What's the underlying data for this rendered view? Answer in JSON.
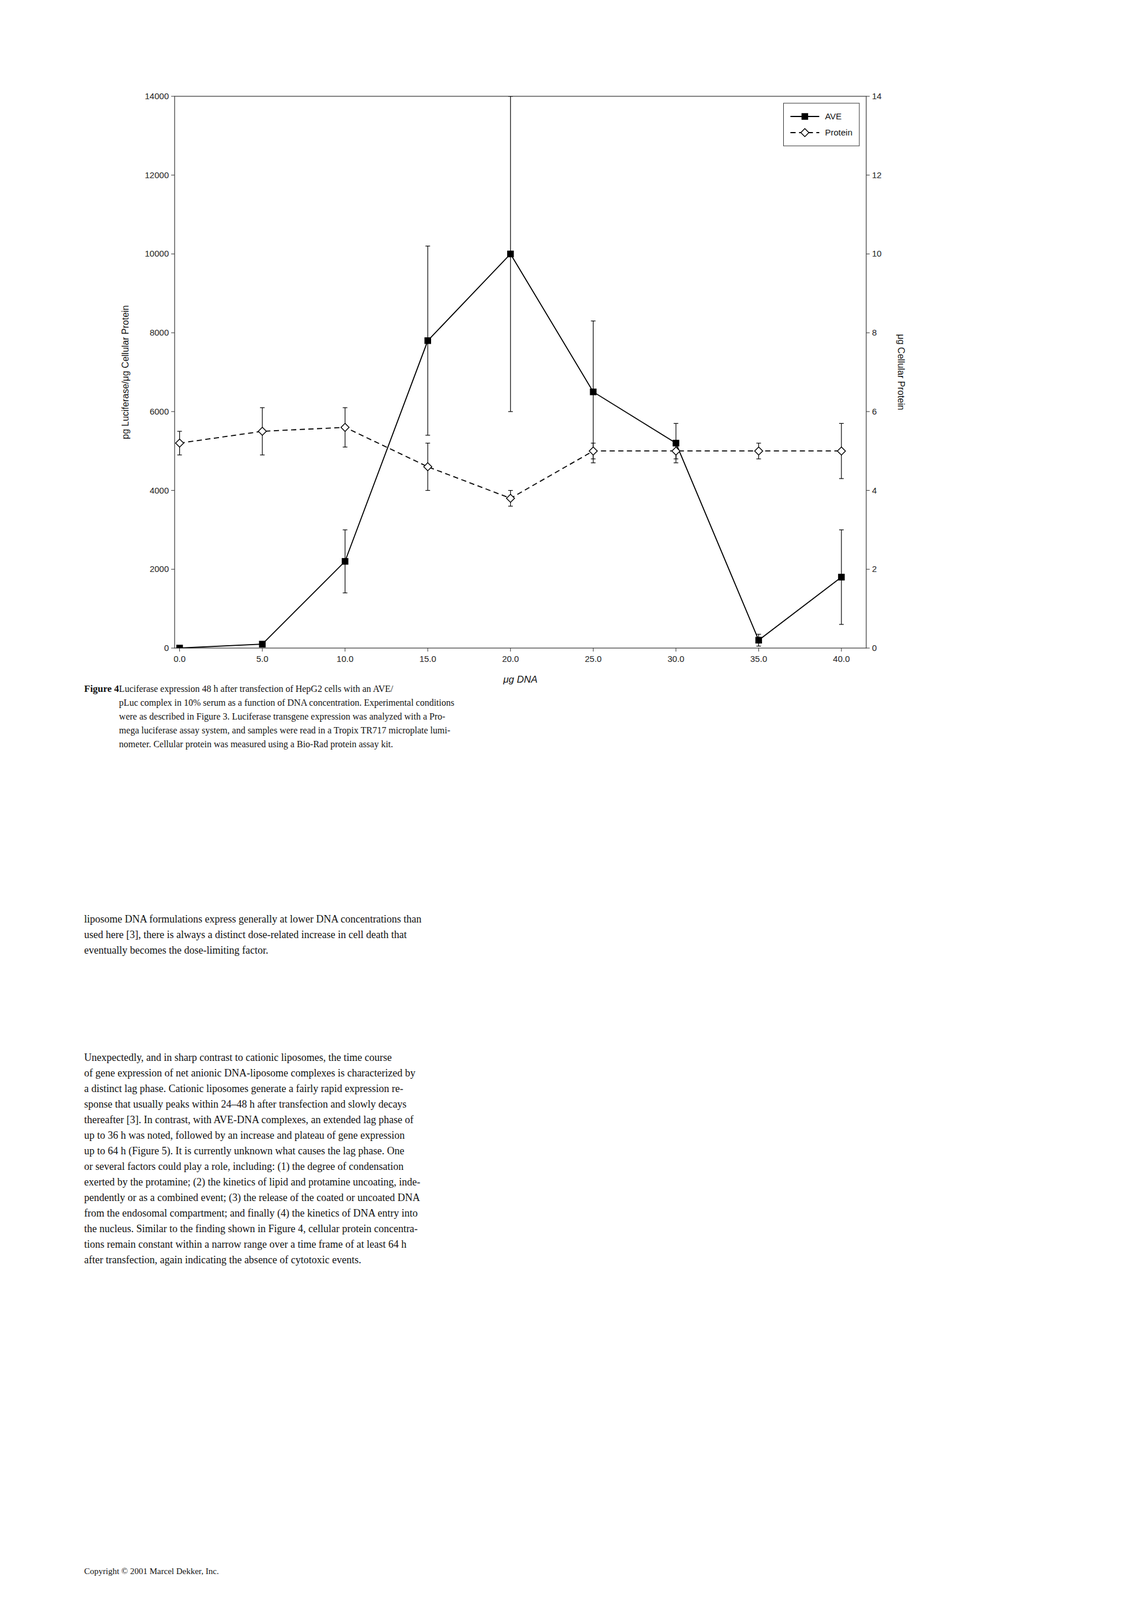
{
  "chart_data": {
    "type": "line",
    "xlabel": "μg DNA",
    "ylabel": "pg Luciferase/μg Cellular Protein",
    "y2label": "μg Cellular Protein",
    "x": [
      0.0,
      5.0,
      10.0,
      15.0,
      20.0,
      25.0,
      30.0,
      35.0,
      40.0
    ],
    "series": [
      {
        "name": "AVE",
        "color": "#000000",
        "marker": "square",
        "line_style": "solid",
        "values": [
          0,
          100,
          2200,
          7800,
          10000,
          6500,
          5200,
          200,
          1800
        ],
        "error_low": [
          0,
          60,
          800,
          2400,
          4000,
          1800,
          500,
          150,
          1200
        ],
        "error_high": [
          0,
          60,
          800,
          2400,
          4000,
          1800,
          500,
          150,
          1200
        ]
      },
      {
        "name": "Protein",
        "color": "#000000",
        "marker": "open-diamond",
        "line_style": "dashed",
        "axis": "y2",
        "values": [
          5.2,
          5.5,
          5.6,
          4.6,
          3.8,
          5.0,
          5.0,
          5.0,
          5.0
        ],
        "error_low": [
          0.3,
          0.6,
          0.5,
          0.6,
          0.2,
          0.2,
          0.2,
          0.2,
          0.7
        ],
        "error_high": [
          0.3,
          0.6,
          0.5,
          0.6,
          0.2,
          0.2,
          0.2,
          0.2,
          0.7
        ]
      }
    ],
    "xlim": [
      -0.3,
      41.5
    ],
    "xticks": [
      {
        "value": 0.0,
        "label": "0.0"
      },
      {
        "value": 5.0,
        "label": "5.0"
      },
      {
        "value": 10.0,
        "label": "10.0"
      },
      {
        "value": 15.0,
        "label": "15.0"
      },
      {
        "value": 20.0,
        "label": "20.0"
      },
      {
        "value": 25.0,
        "label": "25.0"
      },
      {
        "value": 30.0,
        "label": "30.0"
      },
      {
        "value": 35.0,
        "label": "35.0"
      },
      {
        "value": 40.0,
        "label": "40.0"
      }
    ],
    "ylim": [
      0,
      14000
    ],
    "yticks": [
      0,
      2000,
      4000,
      6000,
      8000,
      10000,
      12000,
      14000
    ],
    "y2lim": [
      0,
      14
    ],
    "y2ticks": [
      0,
      2,
      4,
      6,
      8,
      10,
      12,
      14
    ],
    "legend": "upper right",
    "grid": false,
    "annotations": [
      "Figure 4",
      "   Luciferase expression 48 h after transfection of HepG2 cells with an AVE/\npLuc complex in 10% serum as a function of DNA concentration. Experimental conditions\nwere as described in Figure 3. Luciferase transgene expression was analyzed with a Pro-\nmega luciferase assay system, and samples were read in a Tropix TR717 microplate lumi-\nnometer. Cellular protein was measured using a Bio-Rad protein assay kit.",
      "liposome DNA formulations express generally at lower DNA concentrations than\nused here [3], there is always a distinct dose-related increase in cell death that\neventually becomes the dose-limiting factor.",
      "        Unexpectedly, and in sharp contrast to cationic liposomes, the time course\nof gene expression of net anionic DNA-liposome complexes is characterized by\na distinct lag phase. Cationic liposomes generate a fairly rapid expression re-\nsponse that usually peaks within 24–48 h after transfection and slowly decays\nthereafter [3]. In contrast, with AVE-DNA complexes, an extended lag phase of\nup to 36 h was noted, followed by an increase and plateau of gene expression\nup to 64 h (Figure 5). It is currently unknown what causes the lag phase. One\nor several factors could play a role, including: (1) the degree of condensation\nexerted by the protamine; (2) the kinetics of lipid and protamine uncoating, inde-\npendently or as a combined event; (3) the release of the coated or uncoated DNA\nfrom the endosomal compartment; and finally (4) the kinetics of DNA entry into\nthe nucleus. Similar to the finding shown in Figure 4, cellular protein concentra-\ntions remain constant within a narrow range over a time frame of at least 64 h\nafter transfection, again indicating the absence of cytotoxic events.",
      "Copyright © 2001 Marcel Dekker, Inc."
    ]
  }
}
